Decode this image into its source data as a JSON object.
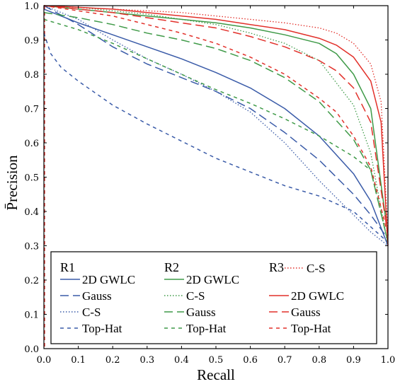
{
  "chart_data": {
    "type": "line",
    "title": "",
    "xlabel": "Recall",
    "ylabel": "P̄recision",
    "xlim": [
      0,
      1
    ],
    "ylim": [
      0,
      1
    ],
    "xticks": [
      "0.0",
      "0.1",
      "0.2",
      "0.3",
      "0.4",
      "0.5",
      "0.6",
      "0.7",
      "0.8",
      "0.9",
      "1.0"
    ],
    "yticks": [
      "0.0",
      "0.1",
      "0.2",
      "0.3",
      "0.4",
      "0.5",
      "0.6",
      "0.7",
      "0.8",
      "0.9",
      "1.0"
    ],
    "grid": false,
    "legend_position": "bottom-center",
    "legend_groups": [
      "R1",
      "R2",
      "R3"
    ],
    "colors": {
      "R1": "#3a5ba8",
      "R2": "#3f9a48",
      "R3": "#e2302a"
    },
    "series": [
      {
        "group": "R1",
        "name": "2D GWLC",
        "dash": "solid",
        "x": [
          0,
          0.1,
          0.2,
          0.3,
          0.4,
          0.5,
          0.6,
          0.7,
          0.8,
          0.9,
          0.95,
          1.0
        ],
        "y": [
          0.99,
          0.95,
          0.915,
          0.88,
          0.845,
          0.805,
          0.76,
          0.7,
          0.62,
          0.51,
          0.43,
          0.3
        ]
      },
      {
        "group": "R1",
        "name": "Gauss",
        "dash": "dashed",
        "x": [
          0,
          0.1,
          0.2,
          0.3,
          0.4,
          0.5,
          0.6,
          0.7,
          0.8,
          0.9,
          0.95,
          1.0
        ],
        "y": [
          1.0,
          0.945,
          0.88,
          0.83,
          0.79,
          0.75,
          0.7,
          0.63,
          0.55,
          0.45,
          0.39,
          0.32
        ]
      },
      {
        "group": "R1",
        "name": "C-S",
        "dash": "dotted",
        "x": [
          0,
          0.1,
          0.2,
          0.3,
          0.4,
          0.5,
          0.6,
          0.7,
          0.8,
          0.9,
          0.95,
          1.0
        ],
        "y": [
          1.0,
          0.96,
          0.9,
          0.845,
          0.8,
          0.75,
          0.69,
          0.6,
          0.49,
          0.39,
          0.34,
          0.3
        ]
      },
      {
        "group": "R1",
        "name": "Top-Hat",
        "dash": "short-dash",
        "x": [
          0,
          0.02,
          0.05,
          0.1,
          0.2,
          0.3,
          0.4,
          0.5,
          0.6,
          0.7,
          0.8,
          0.9,
          1.0
        ],
        "y": [
          0.92,
          0.86,
          0.82,
          0.78,
          0.71,
          0.655,
          0.605,
          0.555,
          0.515,
          0.475,
          0.445,
          0.4,
          0.31
        ]
      },
      {
        "group": "R2",
        "name": "2D GWLC",
        "dash": "solid",
        "x": [
          0,
          0.1,
          0.2,
          0.3,
          0.4,
          0.5,
          0.6,
          0.7,
          0.8,
          0.85,
          0.9,
          0.95,
          1.0
        ],
        "y": [
          1.0,
          0.99,
          0.98,
          0.97,
          0.96,
          0.95,
          0.935,
          0.915,
          0.89,
          0.86,
          0.8,
          0.7,
          0.33
        ]
      },
      {
        "group": "R2",
        "name": "C-S",
        "dash": "dotted",
        "x": [
          0,
          0.1,
          0.2,
          0.3,
          0.4,
          0.5,
          0.6,
          0.7,
          0.8,
          0.9,
          0.95,
          1.0
        ],
        "y": [
          1.0,
          0.995,
          0.985,
          0.975,
          0.96,
          0.945,
          0.92,
          0.89,
          0.84,
          0.71,
          0.57,
          0.3
        ]
      },
      {
        "group": "R2",
        "name": "Gauss",
        "dash": "dashed",
        "x": [
          0,
          0.1,
          0.2,
          0.3,
          0.4,
          0.5,
          0.6,
          0.7,
          0.8,
          0.9,
          0.95,
          1.0
        ],
        "y": [
          0.98,
          0.965,
          0.945,
          0.92,
          0.9,
          0.875,
          0.84,
          0.79,
          0.72,
          0.61,
          0.52,
          0.31
        ]
      },
      {
        "group": "R2",
        "name": "Top-Hat",
        "dash": "short-dash",
        "x": [
          0,
          0.1,
          0.2,
          0.3,
          0.4,
          0.5,
          0.6,
          0.7,
          0.8,
          0.9,
          0.95,
          1.0
        ],
        "y": [
          0.96,
          0.93,
          0.89,
          0.845,
          0.8,
          0.755,
          0.715,
          0.67,
          0.62,
          0.56,
          0.52,
          0.31
        ]
      },
      {
        "group": "R3",
        "name": "C-S",
        "dash": "dotted",
        "x": [
          0,
          0.1,
          0.2,
          0.3,
          0.4,
          0.5,
          0.6,
          0.7,
          0.8,
          0.85,
          0.9,
          0.95,
          0.98,
          1.0
        ],
        "y": [
          1.0,
          0.995,
          0.99,
          0.985,
          0.98,
          0.97,
          0.96,
          0.95,
          0.935,
          0.92,
          0.89,
          0.83,
          0.72,
          0.33
        ]
      },
      {
        "group": "R3",
        "name": "2D GWLC",
        "dash": "solid",
        "x": [
          0,
          0.1,
          0.2,
          0.3,
          0.4,
          0.5,
          0.6,
          0.7,
          0.8,
          0.85,
          0.9,
          0.95,
          0.98,
          1.0
        ],
        "y": [
          1.0,
          0.995,
          0.99,
          0.98,
          0.97,
          0.96,
          0.945,
          0.93,
          0.905,
          0.885,
          0.85,
          0.78,
          0.66,
          0.3
        ]
      },
      {
        "group": "R3",
        "name": "Gauss",
        "dash": "dashed",
        "x": [
          0,
          0.1,
          0.2,
          0.3,
          0.4,
          0.5,
          0.6,
          0.7,
          0.8,
          0.85,
          0.9,
          0.95,
          1.0
        ],
        "y": [
          1.0,
          0.99,
          0.98,
          0.965,
          0.95,
          0.935,
          0.91,
          0.88,
          0.84,
          0.81,
          0.76,
          0.66,
          0.33
        ]
      },
      {
        "group": "R3",
        "name": "Top-Hat",
        "dash": "short-dash",
        "x": [
          0,
          0.1,
          0.2,
          0.3,
          0.4,
          0.5,
          0.6,
          0.7,
          0.8,
          0.85,
          0.9,
          0.95,
          1.0
        ],
        "y": [
          1.0,
          0.985,
          0.97,
          0.945,
          0.92,
          0.89,
          0.85,
          0.8,
          0.73,
          0.69,
          0.62,
          0.53,
          0.33
        ]
      }
    ]
  }
}
